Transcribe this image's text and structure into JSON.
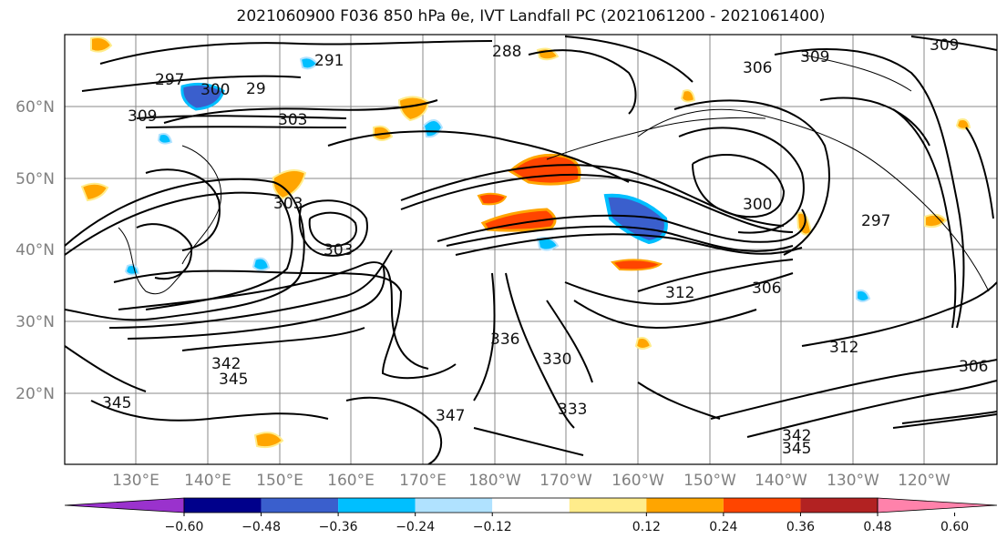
{
  "title": "2021060900 F036 850 hPa θe, IVT Landfall PC (2021061200 - 2021061400)",
  "map": {
    "lat_labels": [
      "60°N",
      "50°N",
      "40°N",
      "30°N",
      "20°N"
    ],
    "lon_labels": [
      "130°E",
      "140°E",
      "150°E",
      "160°E",
      "170°E",
      "180°W",
      "170°W",
      "160°W",
      "150°W",
      "140°W",
      "130°W",
      "120°W"
    ],
    "contour_labels": [
      {
        "text": "297"
      },
      {
        "text": "291"
      },
      {
        "text": "288"
      },
      {
        "text": "306"
      },
      {
        "text": "309"
      },
      {
        "text": "300"
      },
      {
        "text": "309"
      },
      {
        "text": "303"
      },
      {
        "text": "300"
      },
      {
        "text": "303"
      },
      {
        "text": "312"
      },
      {
        "text": "342"
      },
      {
        "text": "345"
      },
      {
        "text": "336"
      },
      {
        "text": "330"
      },
      {
        "text": "333"
      },
      {
        "text": "345"
      },
      {
        "text": "342"
      },
      {
        "text": "345"
      },
      {
        "text": "297"
      },
      {
        "text": "306"
      },
      {
        "text": "312"
      },
      {
        "text": "29"
      },
      {
        "text": "303"
      },
      {
        "text": "309"
      },
      {
        "text": "306"
      },
      {
        "text": "347"
      }
    ]
  },
  "colorbar": {
    "colors": [
      "#9a32cd",
      "#00008b",
      "#3a5fcd",
      "#00bfff",
      "#b0e2ff",
      "#ffffff",
      "#ffec8b",
      "#ffa500",
      "#ff4500",
      "#b22222",
      "#ff82ab"
    ],
    "tick_labels": [
      "−0.60",
      "−0.48",
      "−0.36",
      "−0.24",
      "−0.12",
      "0.12",
      "0.24",
      "0.36",
      "0.48",
      "0.60"
    ]
  }
}
